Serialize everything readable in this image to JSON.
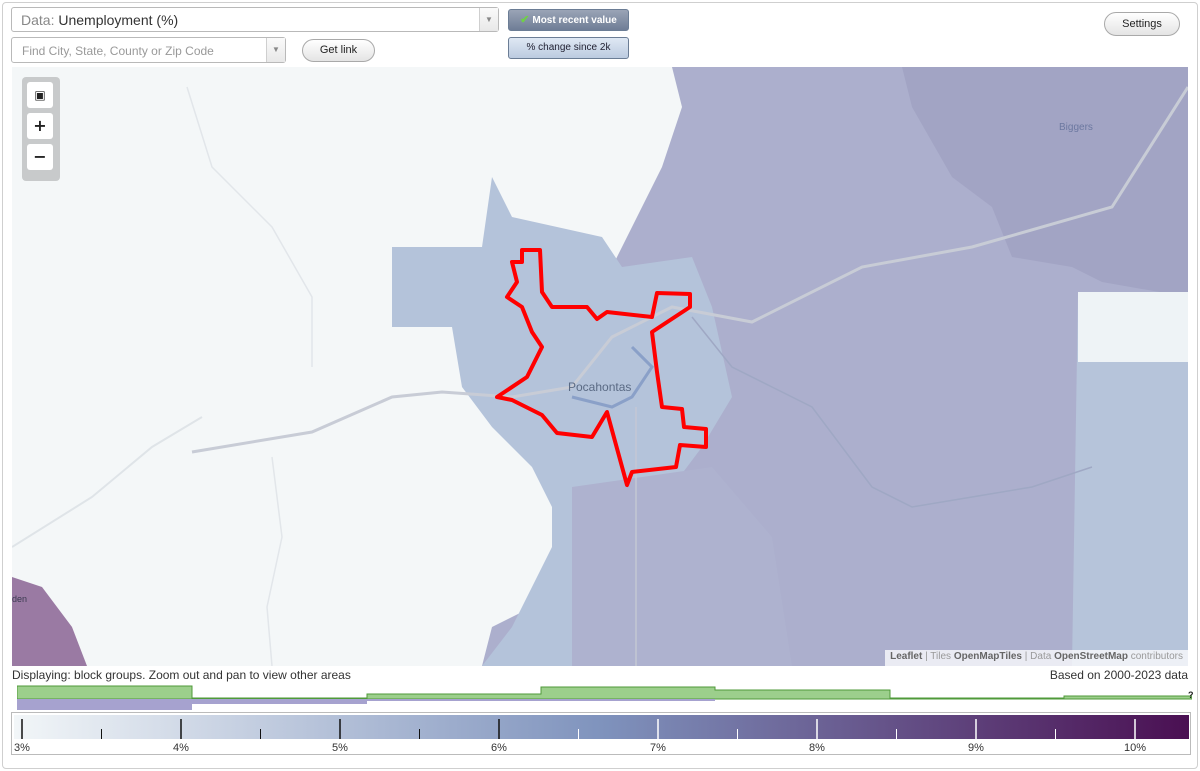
{
  "controls": {
    "data_prefix": "Data:",
    "data_value": "Unemployment (%)",
    "search_placeholder": "Find City, State, County or Zip Code",
    "get_link": "Get link",
    "settings": "Settings",
    "toggle_recent": "Most recent value",
    "toggle_change": "% change since 2k"
  },
  "map": {
    "zoom_fit_icon": "fullscreen-icon",
    "zoom_in": "+",
    "zoom_out": "−",
    "labels": {
      "city": "Pocahontas",
      "town_ne": "Biggers",
      "town_sw": "den"
    },
    "attribution": {
      "leaflet": "Leaflet",
      "sep1": " | Tiles ",
      "tiles": "OpenMapTiles",
      "sep2": " | Data ",
      "data": "OpenStreetMap",
      "tail": " contributors"
    },
    "colors": {
      "boundary": "#ff0000",
      "blue_light": "#b2c1d8",
      "purple_mid": "#a8a9c7",
      "purple_dark": "#9a7aa3"
    }
  },
  "footer": {
    "displaying": "Displaying: block groups. Zoom out and pan to view other areas",
    "based_on": "Based on 2000-2023 data",
    "qmark": "?"
  },
  "legend": {
    "ticks": [
      "3%",
      "4%",
      "5%",
      "6%",
      "7%",
      "8%",
      "9%",
      "10%"
    ],
    "gradient_start": "#f2f6f8",
    "gradient_mid": "#7f93bd",
    "gradient_end": "#4a0f52"
  }
}
